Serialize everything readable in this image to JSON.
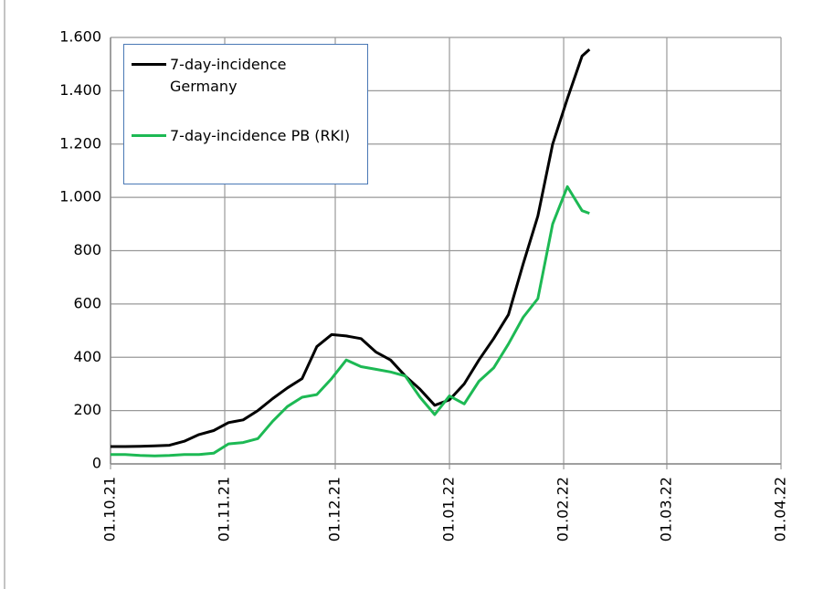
{
  "chart_data": {
    "type": "line",
    "x": [
      "2021-10-01",
      "2021-10-05",
      "2021-10-09",
      "2021-10-13",
      "2021-10-17",
      "2021-10-21",
      "2021-10-25",
      "2021-10-29",
      "2021-11-02",
      "2021-11-06",
      "2021-11-10",
      "2021-11-14",
      "2021-11-18",
      "2021-11-22",
      "2021-11-26",
      "2021-11-30",
      "2021-12-04",
      "2021-12-08",
      "2021-12-12",
      "2021-12-16",
      "2021-12-20",
      "2021-12-24",
      "2021-12-28",
      "2022-01-01",
      "2022-01-05",
      "2022-01-09",
      "2022-01-13",
      "2022-01-17",
      "2022-01-21",
      "2022-01-25",
      "2022-01-29",
      "2022-02-02",
      "2022-02-06",
      "2022-02-08"
    ],
    "series": [
      {
        "name": "7-day-incidence Germany",
        "color": "#000000",
        "values": [
          65,
          65,
          66,
          68,
          70,
          85,
          110,
          125,
          155,
          165,
          200,
          245,
          285,
          320,
          440,
          485,
          480,
          470,
          420,
          390,
          330,
          280,
          220,
          240,
          300,
          390,
          470,
          560,
          750,
          930,
          1200,
          1370,
          1530,
          1555
        ]
      },
      {
        "name": "7-day-incidence PB (RKI)",
        "color": "#1db954",
        "values": [
          35,
          35,
          32,
          30,
          32,
          35,
          35,
          40,
          75,
          80,
          95,
          160,
          215,
          250,
          260,
          320,
          390,
          365,
          355,
          345,
          330,
          250,
          185,
          255,
          225,
          310,
          360,
          450,
          550,
          620,
          900,
          1040,
          950,
          940
        ]
      }
    ],
    "xlim": [
      "2021-10-01",
      "2022-04-01"
    ],
    "xticks": [
      {
        "value": "2021-10-01",
        "label": "01.10.21"
      },
      {
        "value": "2021-11-01",
        "label": "01.11.21"
      },
      {
        "value": "2021-12-01",
        "label": "01.12.21"
      },
      {
        "value": "2022-01-01",
        "label": "01.01.22"
      },
      {
        "value": "2022-02-01",
        "label": "01.02.22"
      },
      {
        "value": "2022-03-01",
        "label": "01.03.22"
      },
      {
        "value": "2022-04-01",
        "label": "01.04.22"
      }
    ],
    "ylim": [
      0,
      1600
    ],
    "yticks": [
      0,
      200,
      400,
      600,
      800,
      {
        "value": 1000,
        "label": "1.000"
      },
      {
        "value": 1200,
        "label": "1.200"
      },
      {
        "value": 1400,
        "label": "1.400"
      },
      {
        "value": 1600,
        "label": "1.600"
      }
    ],
    "grid": true,
    "legend": "top-left"
  }
}
